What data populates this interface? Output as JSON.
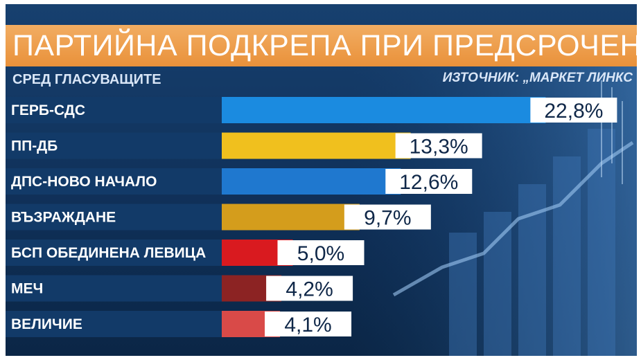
{
  "header": {
    "title": "ПАРТИЙНА ПОДКРЕПА ПРИ ПРЕДСРОЧЕН ВОТ",
    "subtitle": "СРЕД ГЛАСУВАЩИТЕ",
    "source": "ИЗТОЧНИК: „МАРКЕТ ЛИНКС"
  },
  "colors": {
    "title_band": "#ec9a45",
    "background": "#123a68"
  },
  "chart_data": {
    "type": "bar",
    "orientation": "horizontal",
    "title": "ПАРТИЙНА ПОДКРЕПА ПРИ ПРЕДСРОЧЕН ВОТ",
    "subtitle": "СРЕД ГЛАСУВАЩИТЕ",
    "categories": [
      "ГЕРБ-СДС",
      "ПП-ДБ",
      "ДПС-НОВО НАЧАЛО",
      "ВЪЗРАЖДАНЕ",
      "БСП ОБЕДИНЕНА ЛЕВИЦА",
      "МЕЧ",
      "ВЕЛИЧИЕ"
    ],
    "values": [
      22.8,
      13.3,
      12.6,
      9.7,
      5.0,
      4.2,
      4.1
    ],
    "labels": [
      "22,8%",
      "13,3%",
      "12,6%",
      "9,7%",
      "5,0%",
      "4,2%",
      "4,1%"
    ],
    "colors": [
      "#1b8be0",
      "#f0c01e",
      "#1f78cf",
      "#d49d1c",
      "#d91a1f",
      "#8c2323",
      "#d94a48"
    ],
    "unit": "%",
    "xlim": [
      0,
      25
    ],
    "grid": false,
    "legend": "none"
  }
}
